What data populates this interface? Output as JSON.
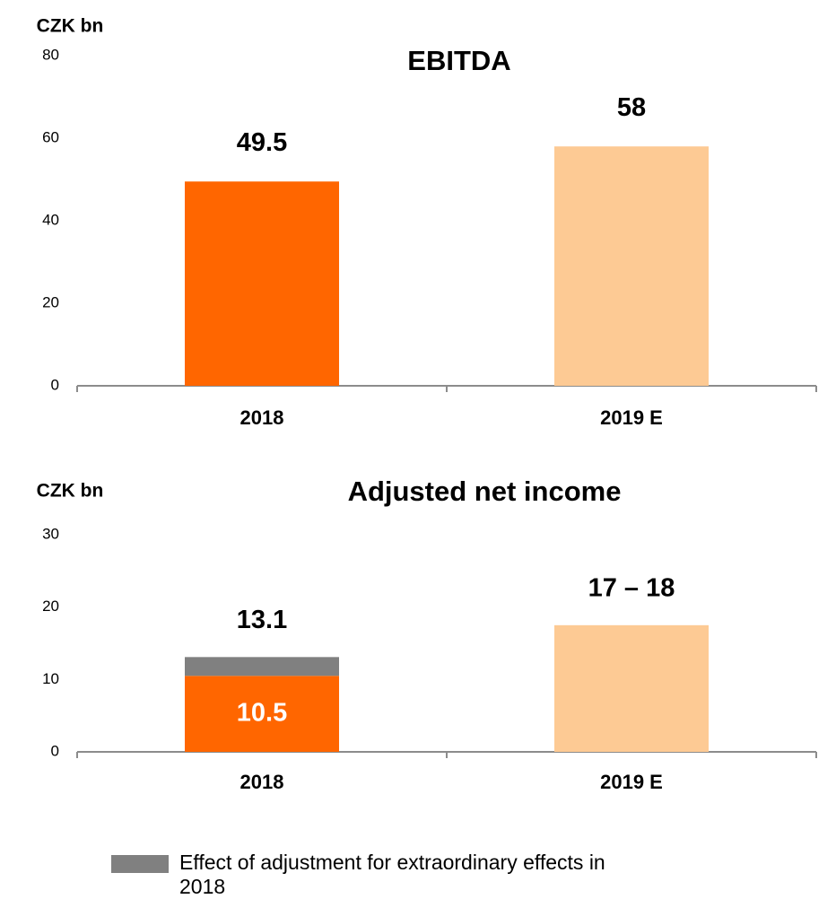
{
  "chart_data": [
    {
      "type": "bar",
      "title": "EBITDA",
      "y_label": "CZK bn",
      "categories": [
        "2018",
        "2019 E"
      ],
      "values": [
        49.5,
        58
      ],
      "colors": [
        "#ff6600",
        "#fdca94"
      ],
      "ylim": [
        0,
        80
      ],
      "yticks": [
        0,
        20,
        40,
        60,
        80
      ]
    },
    {
      "type": "stacked_bar",
      "title": "Adjusted net income",
      "y_label": "CZK bn",
      "categories": [
        "2018",
        "2019 E"
      ],
      "series": [
        {
          "colors": [
            "#ff6600",
            "#fdca94"
          ],
          "values": [
            10.5,
            17.5
          ],
          "value_labels": [
            "10.5",
            "17 – 18"
          ]
        },
        {
          "name": "Effect of adjustment for extraordinary effects in 2018",
          "color": "#808080",
          "values": [
            2.6,
            null
          ]
        }
      ],
      "totals": [
        13.1,
        null
      ],
      "ylim": [
        0,
        30
      ],
      "yticks": [
        0,
        10,
        20,
        30
      ]
    }
  ]
}
